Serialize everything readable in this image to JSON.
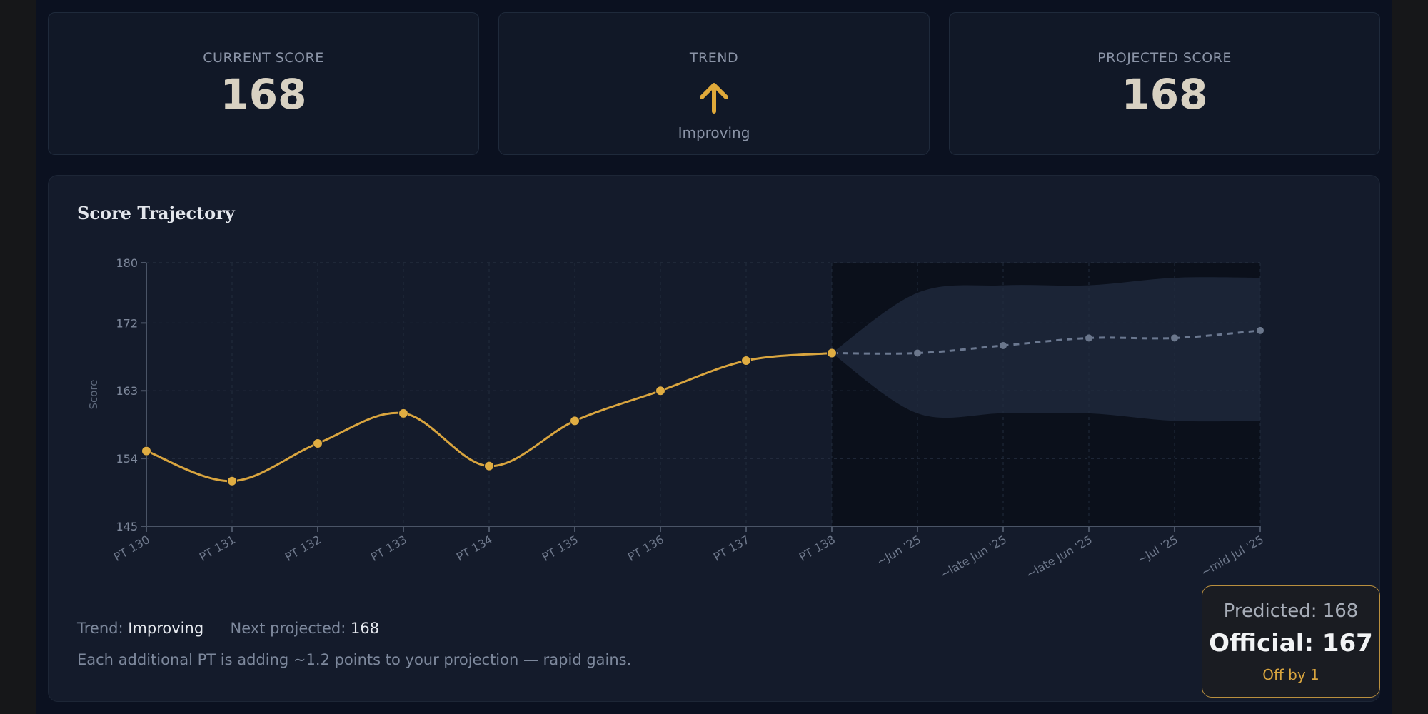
{
  "stats": {
    "current_label": "CURRENT SCORE",
    "current_value": "168",
    "trend_label": "TREND",
    "trend_icon": "arrow-up-icon",
    "trend_value": "Improving",
    "projected_label": "PROJECTED SCORE",
    "projected_value": "168"
  },
  "chart_card": {
    "title": "Score Trajectory",
    "footer": {
      "trend_label": "Trend:",
      "trend_value": "Improving",
      "next_label": "Next projected:",
      "next_value": "168",
      "note": "Each additional PT is adding ~1.2 points to your projection — rapid gains."
    }
  },
  "prediction": {
    "predicted": "Predicted: 168",
    "official": "Official: 167",
    "diff": "Off by 1"
  },
  "colors": {
    "actual_line": "#d9a53f",
    "projection_line": "#6b7890",
    "band_fill": "#1c2638",
    "accent": "#e0a93a"
  },
  "chart_data": {
    "type": "line",
    "categories": [
      "PT 130",
      "PT 131",
      "PT 132",
      "PT 133",
      "PT 134",
      "PT 135",
      "PT 136",
      "PT 137",
      "PT 138",
      "~Jun '25",
      "~late Jun '25",
      "~late Jun '25",
      "~Jul '25",
      "~mid Jul '25"
    ],
    "ylabel": "Score",
    "ylim": [
      145,
      180
    ],
    "yticks": [
      145,
      154,
      163,
      172,
      180
    ],
    "grid": true,
    "series": [
      {
        "values": [
          155,
          151,
          156,
          160,
          153,
          159,
          163,
          167,
          168,
          null,
          null,
          null,
          null,
          null
        ]
      },
      {
        "values": [
          null,
          null,
          null,
          null,
          null,
          null,
          null,
          null,
          168,
          168,
          169,
          170,
          170,
          171
        ]
      }
    ],
    "band_upper": [
      null,
      null,
      null,
      null,
      null,
      null,
      null,
      null,
      168,
      176,
      177,
      177,
      178,
      178
    ],
    "band_lower": [
      null,
      null,
      null,
      null,
      null,
      null,
      null,
      null,
      168,
      160,
      160,
      160,
      159,
      159
    ]
  }
}
